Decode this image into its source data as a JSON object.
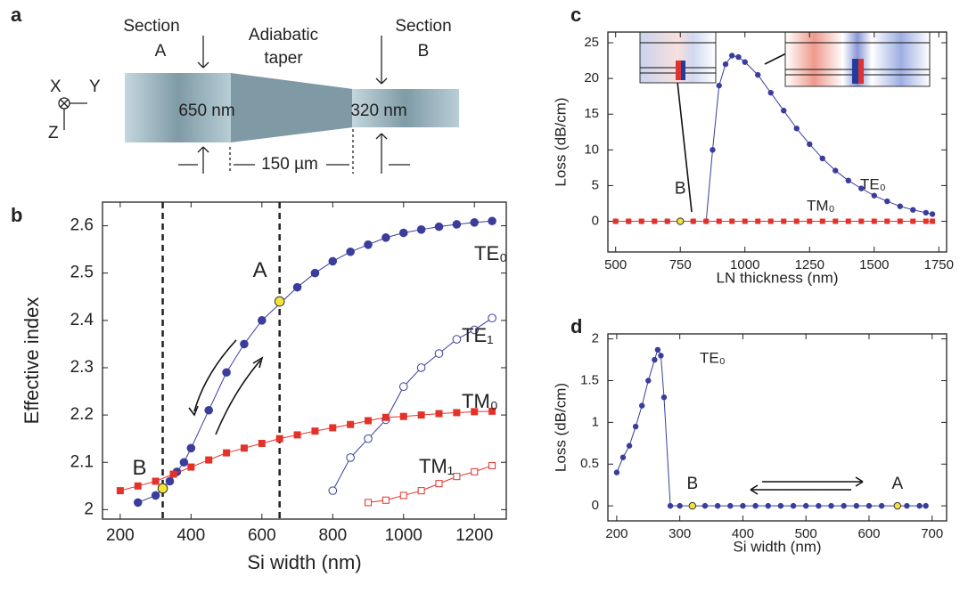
{
  "diagram": {
    "panel": "a",
    "section_a": [
      "Section",
      "A"
    ],
    "taper": [
      "Adiabatic",
      "taper"
    ],
    "section_b": [
      "Section",
      "B"
    ],
    "axes": [
      "X",
      "Y",
      "Z"
    ],
    "width_a": "650 nm",
    "width_b": "320 nm",
    "length": "150 µm"
  },
  "chart_data": [
    {
      "type": "line",
      "panel": "b",
      "xlabel": "Si width (nm)",
      "ylabel": "Effective index",
      "xlim": [
        150,
        1290
      ],
      "ylim": [
        1.98,
        2.65
      ],
      "xticks": [
        200,
        400,
        600,
        800,
        1000,
        1200
      ],
      "yticks": [
        2,
        2.1,
        2.2,
        2.3,
        2.4,
        2.5,
        2.6
      ],
      "vlines": [
        320,
        650
      ],
      "series": [
        {
          "name": "TE₀",
          "color": "#3a3d9c",
          "marker": "circle",
          "filled": true,
          "x": [
            250,
            300,
            340,
            360,
            380,
            400,
            450,
            500,
            550,
            600,
            700,
            750,
            800,
            850,
            900,
            950,
            1000,
            1050,
            1100,
            1150,
            1200,
            1250
          ],
          "values": [
            2.015,
            2.03,
            2.06,
            2.08,
            2.1,
            2.13,
            2.21,
            2.29,
            2.35,
            2.4,
            2.47,
            2.5,
            2.525,
            2.545,
            2.56,
            2.575,
            2.585,
            2.592,
            2.598,
            2.603,
            2.607,
            2.61
          ]
        },
        {
          "name": "TE₁",
          "color": "#3a3d9c",
          "marker": "circle",
          "filled": false,
          "x": [
            800,
            850,
            900,
            950,
            1000,
            1050,
            1100,
            1150,
            1200,
            1250
          ],
          "values": [
            2.04,
            2.11,
            2.15,
            2.19,
            2.26,
            2.3,
            2.33,
            2.36,
            2.38,
            2.405
          ]
        },
        {
          "name": "TM₀",
          "color": "#e4322b",
          "marker": "square",
          "filled": true,
          "x": [
            200,
            250,
            300,
            350,
            400,
            450,
            500,
            550,
            600,
            650,
            700,
            750,
            800,
            850,
            900,
            950,
            1000,
            1050,
            1100,
            1150,
            1200,
            1250
          ],
          "values": [
            2.04,
            2.05,
            2.06,
            2.075,
            2.09,
            2.105,
            2.12,
            2.13,
            2.14,
            2.15,
            2.158,
            2.166,
            2.173,
            2.18,
            2.188,
            2.195,
            2.197,
            2.2,
            2.203,
            2.205,
            2.207,
            2.208
          ]
        },
        {
          "name": "TM₁",
          "color": "#e4322b",
          "marker": "square",
          "filled": false,
          "x": [
            900,
            950,
            1000,
            1050,
            1100,
            1150,
            1200,
            1250
          ],
          "values": [
            2.015,
            2.02,
            2.03,
            2.04,
            2.055,
            2.07,
            2.08,
            2.093
          ]
        }
      ],
      "highlights": [
        {
          "x": 320,
          "y": 2.045,
          "label": "B"
        },
        {
          "x": 650,
          "y": 2.44,
          "label": "A"
        }
      ]
    },
    {
      "type": "line",
      "panel": "c",
      "xlabel": "LN thickness (nm)",
      "ylabel": "Loss (dB/cm)",
      "xlim": [
        470,
        1780
      ],
      "ylim": [
        -4.3,
        26.5
      ],
      "xticks": [
        500,
        750,
        1000,
        1250,
        1500,
        1750
      ],
      "yticks": [
        0,
        5,
        10,
        15,
        20,
        25
      ],
      "series": [
        {
          "name": "TE₀",
          "color": "#3a3d9c",
          "marker": "circle",
          "filled": true,
          "x": [
            500,
            550,
            600,
            650,
            700,
            800,
            850,
            875,
            900,
            925,
            950,
            975,
            1000,
            1050,
            1100,
            1150,
            1200,
            1250,
            1300,
            1350,
            1400,
            1450,
            1500,
            1550,
            1600,
            1650,
            1700,
            1725
          ],
          "values": [
            0,
            0,
            0,
            0,
            0,
            0,
            0,
            10,
            19,
            22,
            23.2,
            23,
            22.3,
            20.5,
            18,
            15.5,
            13,
            10.8,
            8.8,
            7.1,
            5.7,
            4.6,
            3.6,
            2.8,
            2.1,
            1.6,
            1.2,
            1
          ]
        },
        {
          "name": "TM₀",
          "color": "#e4322b",
          "marker": "square",
          "filled": true,
          "x": [
            500,
            550,
            600,
            650,
            700,
            800,
            850,
            900,
            950,
            1000,
            1050,
            1100,
            1150,
            1200,
            1250,
            1300,
            1350,
            1400,
            1450,
            1500,
            1550,
            1600,
            1650,
            1700,
            1725
          ],
          "values": [
            0,
            0,
            0,
            0,
            0,
            0,
            0,
            0,
            0,
            0,
            0,
            0,
            0,
            0,
            0,
            0,
            0,
            0,
            0,
            0,
            0,
            0,
            0,
            0,
            0
          ]
        }
      ],
      "highlights": [
        {
          "x": 750,
          "y": 0,
          "label": "B"
        }
      ]
    },
    {
      "type": "line",
      "panel": "d",
      "xlabel": "Si width (nm)",
      "ylabel": "Loss (dB/cm)",
      "xlim": [
        186,
        723
      ],
      "ylim": [
        -0.18,
        2.06
      ],
      "xticks": [
        200,
        300,
        400,
        500,
        600,
        700
      ],
      "yticks": [
        0,
        0.5,
        1,
        1.5,
        2
      ],
      "series": [
        {
          "name": "TE₀",
          "color": "#3a3d9c",
          "marker": "circle",
          "filled": true,
          "x": [
            200,
            210,
            220,
            230,
            240,
            250,
            260,
            265,
            270,
            275,
            285,
            300,
            340,
            360,
            380,
            400,
            420,
            440,
            460,
            480,
            500,
            520,
            540,
            560,
            580,
            600,
            620,
            660,
            680,
            690
          ],
          "values": [
            0.4,
            0.58,
            0.72,
            0.95,
            1.2,
            1.5,
            1.75,
            1.87,
            1.8,
            1.3,
            0,
            0,
            0,
            0,
            0,
            0,
            0,
            0,
            0,
            0,
            0,
            0,
            0,
            0,
            0,
            0,
            0,
            0,
            0,
            0
          ]
        }
      ],
      "highlights": [
        {
          "x": 320,
          "y": 0,
          "label": "B"
        },
        {
          "x": 645,
          "y": 0,
          "label": "A"
        }
      ]
    }
  ]
}
